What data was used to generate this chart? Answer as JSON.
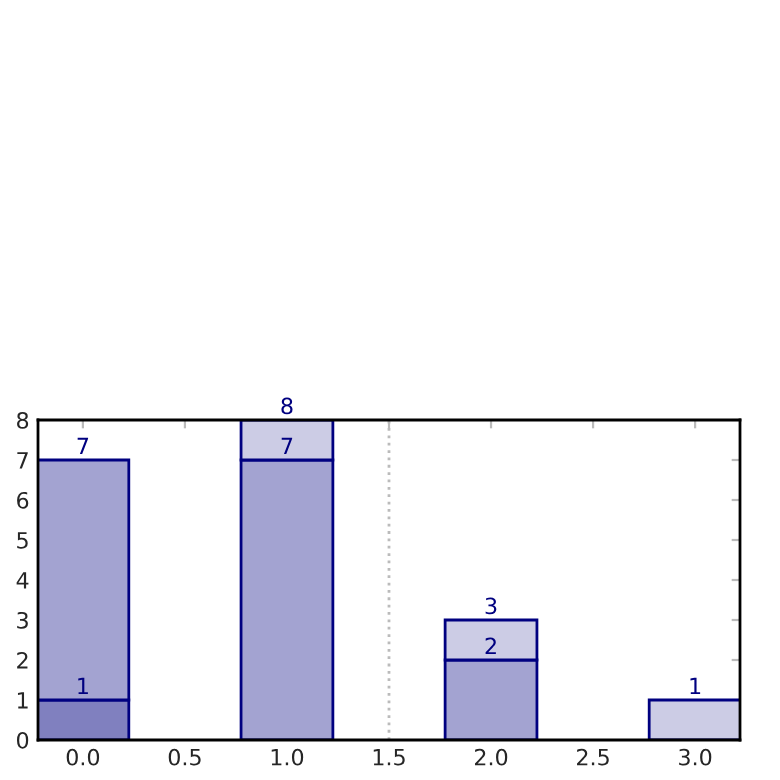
{
  "chart_data": {
    "type": "bar",
    "x": [
      0,
      1,
      2,
      3
    ],
    "series": [
      {
        "color": "#8080bf",
        "values": [
          1,
          null,
          null,
          null
        ]
      },
      {
        "color": "#a3a3d1",
        "values": [
          6,
          7,
          2,
          null
        ]
      },
      {
        "color": "#ccccE5",
        "values": [
          null,
          1,
          1,
          1
        ]
      }
    ],
    "stacked": true,
    "annotations": [
      {
        "text": "1",
        "x": 0,
        "y": 1
      },
      {
        "text": "7",
        "x": 0,
        "y": 7
      },
      {
        "text": "7",
        "x": 1,
        "y": 7
      },
      {
        "text": "8",
        "x": 1,
        "y": 8
      },
      {
        "text": "2",
        "x": 2,
        "y": 2
      },
      {
        "text": "3",
        "x": 2,
        "y": 3
      },
      {
        "text": "1",
        "x": 3,
        "y": 1
      }
    ],
    "xlim": [
      -0.22,
      3.22
    ],
    "xticks": [
      {
        "value": 0,
        "label": "0.0"
      },
      0.5,
      {
        "value": 1,
        "label": "1.0"
      },
      1.5,
      {
        "value": 2,
        "label": "2.0"
      },
      2.5,
      {
        "value": 3,
        "label": "3.0"
      }
    ],
    "ylim": [
      0,
      8
    ],
    "yticks": [
      0,
      1,
      2,
      3,
      4,
      5,
      6,
      7,
      8
    ],
    "ref_lines": [
      {
        "axis": "x",
        "value": 1.5,
        "color": "#bbbbbb",
        "line_style": "dotted"
      }
    ],
    "grid": false
  }
}
